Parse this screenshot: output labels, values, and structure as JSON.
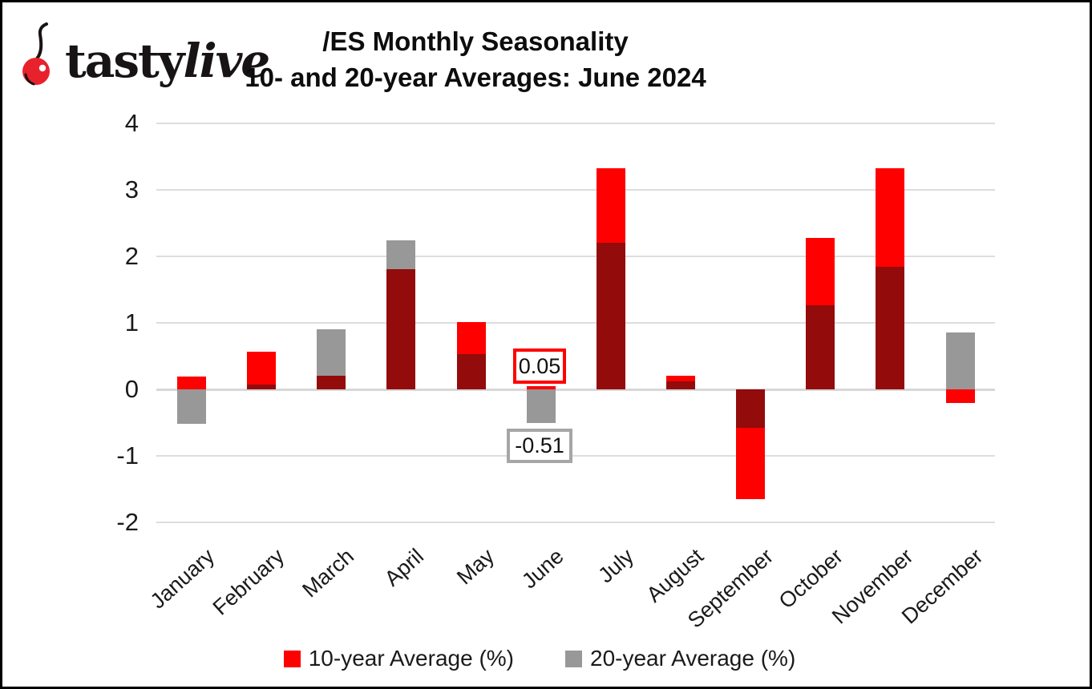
{
  "logo": {
    "brand_first": "tasty",
    "brand_second": "live",
    "cherry_color": "#e8222d"
  },
  "title": {
    "line1": "/ES Monthly Seasonality",
    "line2": "10- and 20-year Averages: June 2024"
  },
  "chart_data": {
    "type": "bar",
    "categories": [
      "January",
      "February",
      "March",
      "April",
      "May",
      "June",
      "July",
      "August",
      "September",
      "October",
      "November",
      "December"
    ],
    "series": [
      {
        "name": "10-year Average (%)",
        "color": "#ff0000",
        "values": [
          0.19,
          0.57,
          0.2,
          1.81,
          1.01,
          0.05,
          3.32,
          0.2,
          -1.65,
          2.28,
          3.33,
          -0.2
        ]
      },
      {
        "name": "20-year Average (%)",
        "color": "#989898",
        "values": [
          -0.52,
          0.07,
          0.9,
          2.24,
          0.53,
          -0.51,
          2.2,
          0.12,
          -0.58,
          1.26,
          1.84,
          0.85
        ]
      }
    ],
    "overlap_color": "#930b0b",
    "ylim": [
      -2,
      4
    ],
    "yticks": [
      4,
      3,
      2,
      1,
      0,
      -1,
      -2
    ],
    "grid": true,
    "legend_position": "bottom",
    "annotations": [
      {
        "text": "0.05",
        "month": "June",
        "series": "10-year Average (%)",
        "border_color": "#ff0000"
      },
      {
        "text": "-0.51",
        "month": "June",
        "series": "20-year Average (%)",
        "border_color": "#a6a6a6"
      }
    ]
  }
}
